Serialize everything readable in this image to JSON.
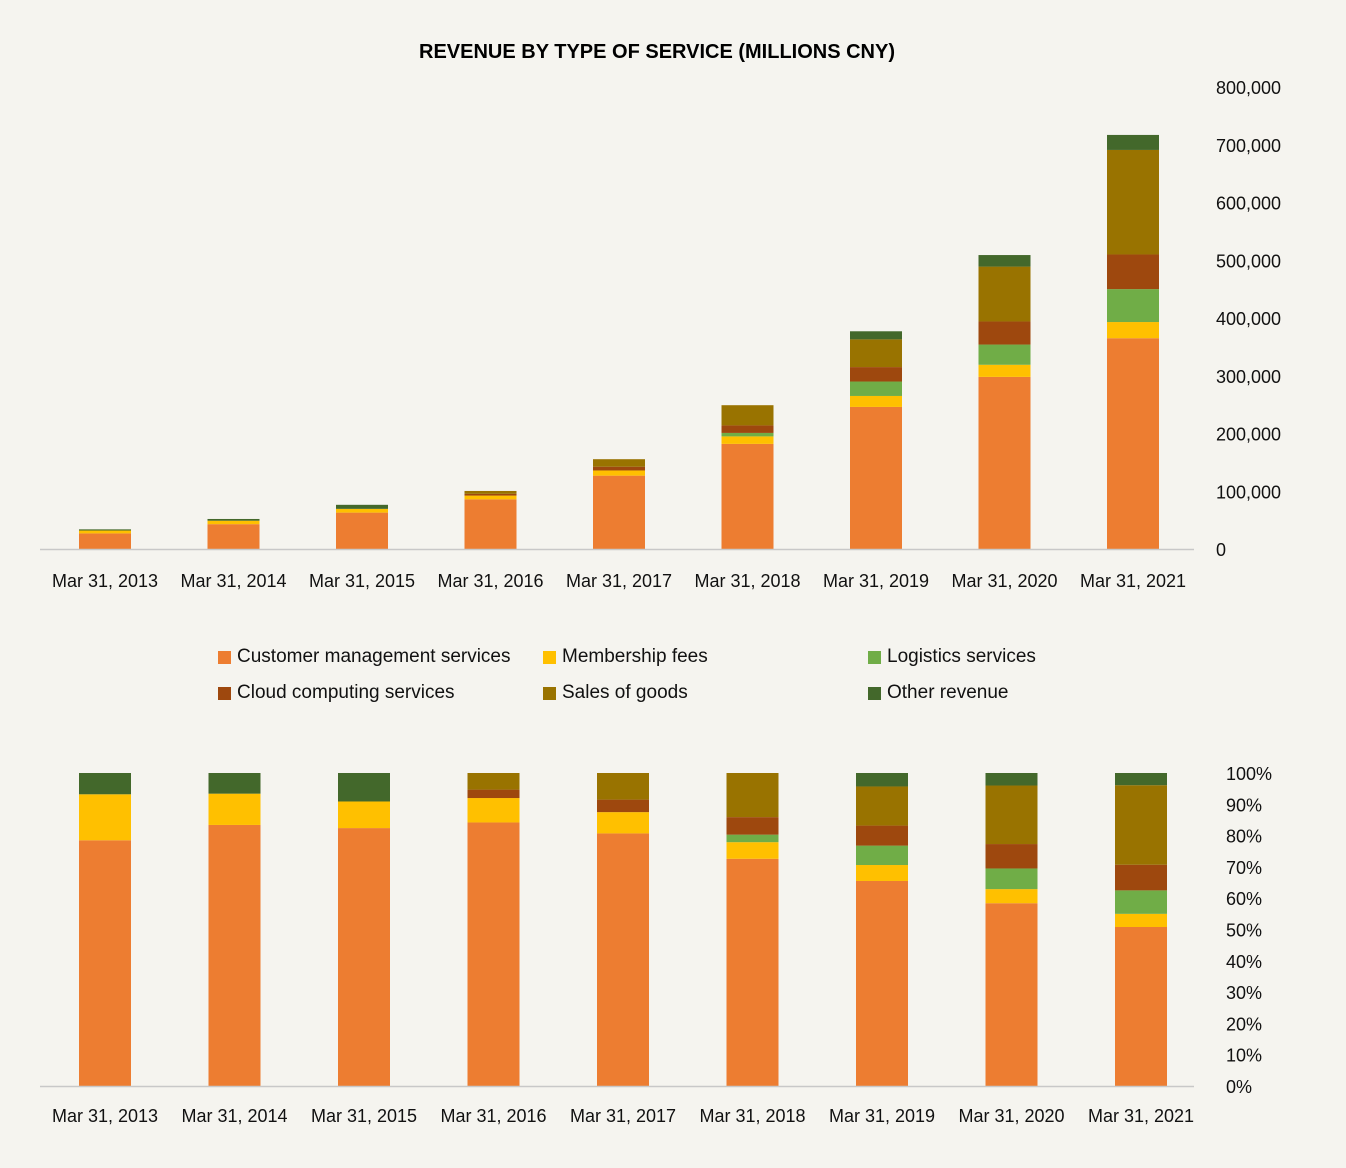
{
  "chart_data": [
    {
      "type": "bar",
      "stacked": true,
      "title": "REVENUE BY TYPE OF SERVICE (MILLIONS CNY)",
      "xlabel": "",
      "ylabel": "",
      "ylim": [
        0,
        800000
      ],
      "yticks": [
        "0",
        "100,000",
        "200,000",
        "300,000",
        "400,000",
        "500,000",
        "600,000",
        "700,000",
        "800,000"
      ],
      "categories": [
        "Mar 31, 2013",
        "Mar 31, 2014",
        "Mar 31, 2015",
        "Mar 31, 2016",
        "Mar 31, 2017",
        "Mar 31, 2018",
        "Mar 31, 2019",
        "Mar 31, 2020",
        "Mar 31, 2021"
      ],
      "series": [
        {
          "name": "Customer management services",
          "color": "#ed7d31",
          "values": [
            27000,
            43000,
            63000,
            86000,
            127000,
            182000,
            246000,
            298000,
            365000
          ]
        },
        {
          "name": "Membership fees",
          "color": "#ffc000",
          "values": [
            5000,
            6000,
            6500,
            6500,
            9000,
            13000,
            19000,
            21000,
            28000
          ]
        },
        {
          "name": "Logistics services",
          "color": "#70ad47",
          "values": [
            0,
            0,
            0,
            0,
            0,
            6000,
            25000,
            35000,
            57000
          ]
        },
        {
          "name": "Cloud computing services",
          "color": "#9e480e",
          "values": [
            0,
            0,
            0,
            3000,
            6500,
            13000,
            25000,
            40000,
            60000
          ]
        },
        {
          "name": "Sales of goods",
          "color": "#997300",
          "values": [
            0,
            0,
            0,
            5000,
            13000,
            35000,
            48000,
            95000,
            181000
          ]
        },
        {
          "name": "Other revenue",
          "color": "#43682b",
          "values": [
            2000,
            3000,
            7000,
            0,
            0,
            0,
            14000,
            20000,
            26000
          ]
        }
      ]
    },
    {
      "type": "bar",
      "stacked": true,
      "percent": true,
      "title": "",
      "xlabel": "",
      "ylabel": "",
      "ylim": [
        0,
        100
      ],
      "yticks": [
        "0%",
        "10%",
        "20%",
        "30%",
        "40%",
        "50%",
        "60%",
        "70%",
        "80%",
        "90%",
        "100%"
      ],
      "categories": [
        "Mar 31, 2013",
        "Mar 31, 2014",
        "Mar 31, 2015",
        "Mar 31, 2016",
        "Mar 31, 2017",
        "Mar 31, 2018",
        "Mar 31, 2019",
        "Mar 31, 2020",
        "Mar 31, 2021"
      ],
      "series": [
        {
          "name": "Customer management services",
          "color": "#ed7d31",
          "values": [
            78.5,
            83.4,
            82.4,
            84.2,
            80.7,
            72.6,
            65.5,
            58.4,
            50.8
          ]
        },
        {
          "name": "Membership fees",
          "color": "#ffc000",
          "values": [
            14.7,
            10,
            8.5,
            7.8,
            6.8,
            5.3,
            5.1,
            4.5,
            4.2
          ]
        },
        {
          "name": "Logistics services",
          "color": "#70ad47",
          "values": [
            0,
            0,
            0,
            0,
            0,
            2.4,
            6.2,
            6.6,
            7.5
          ]
        },
        {
          "name": "Cloud computing services",
          "color": "#9e480e",
          "values": [
            0,
            0,
            0,
            2.7,
            4,
            5.6,
            6.4,
            7.8,
            8.2
          ]
        },
        {
          "name": "Sales of goods",
          "color": "#997300",
          "values": [
            0,
            0,
            0,
            5.3,
            8.5,
            14.1,
            12.5,
            18.7,
            25.4
          ]
        },
        {
          "name": "Other revenue",
          "color": "#43682b",
          "values": [
            6.8,
            6.6,
            9.1,
            0,
            0,
            0,
            4.3,
            4,
            3.9
          ]
        }
      ]
    }
  ],
  "legend": [
    {
      "label": "Customer management services",
      "color": "#ed7d31"
    },
    {
      "label": "Membership fees",
      "color": "#ffc000"
    },
    {
      "label": "Logistics services",
      "color": "#70ad47"
    },
    {
      "label": "Cloud computing services",
      "color": "#9e480e"
    },
    {
      "label": "Sales of goods",
      "color": "#997300"
    },
    {
      "label": "Other revenue",
      "color": "#43682b"
    }
  ]
}
